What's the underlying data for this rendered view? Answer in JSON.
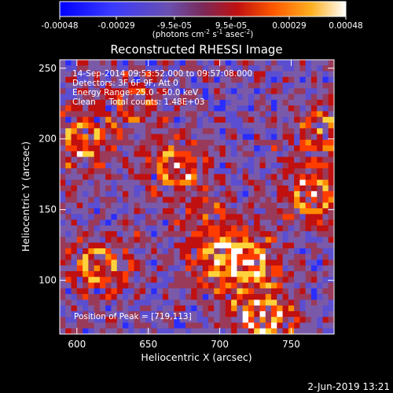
{
  "colorbar": {
    "tick_labels": [
      "-0.00048",
      "-0.00029",
      "-9.5e-05",
      "9.5e-05",
      "0.00029",
      "0.00048"
    ],
    "tick_values": [
      -0.00048,
      -0.00029,
      -9.5e-05,
      9.5e-05,
      0.00029,
      0.00048
    ],
    "range": [
      -0.00048,
      0.00048
    ],
    "units_main": "(photons cm",
    "units_exp1": "-2",
    "units_mid": " s",
    "units_exp2": "-1",
    "units_end": " asec",
    "units_exp3": "-2",
    "units_close": ")",
    "colors": [
      "#0000ff",
      "#2a2dff",
      "#5b4ed0",
      "#7a5aa8",
      "#9a3a5a",
      "#c01010",
      "#ff3c00",
      "#ff8c00",
      "#ffd23c",
      "#ffffff"
    ]
  },
  "chart_data": {
    "type": "heatmap",
    "title": "Reconstructed RHESSI Image",
    "xlabel": "Heliocentric X (arcsec)",
    "ylabel": "Heliocentric Y (arcsec)",
    "xlim": [
      588,
      780
    ],
    "ylim": [
      62,
      256
    ],
    "x_ticks": [
      600,
      650,
      700,
      750
    ],
    "y_ticks": [
      100,
      150,
      200,
      250
    ],
    "x_tick_labels": [
      "600",
      "650",
      "700",
      "750"
    ],
    "y_tick_labels": [
      "100",
      "150",
      "200",
      "250"
    ],
    "annotations": [
      "14-Sep-2014 09:53:52.000 to 09:57:08.000",
      "Detectors: 3F 6F 9F, Att 0",
      "Energy Range: 25.0 - 50.0 keV",
      "Clean     Total counts: 1.48E+03"
    ],
    "peak_label": "Position of Peak = [719,113]",
    "peak_position": [
      719,
      113
    ],
    "grid_cells": 48
  },
  "footer": {
    "date": "2-Jun-2019 13:21"
  }
}
